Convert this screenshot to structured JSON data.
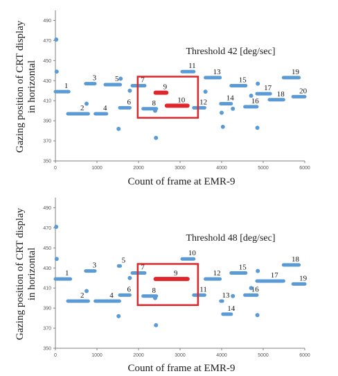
{
  "colors": {
    "series_blue": "#5b9bd5",
    "highlight_red": "#e0262a",
    "box_red": "#e0262a",
    "axis": "#7f7f7f"
  },
  "chart_data": [
    {
      "type": "scatter",
      "annotation": "Threshold 42 [deg/sec]",
      "xlabel": "Count of frame at EMR-9",
      "ylabel_line1": "Gazing position of CRT display",
      "ylabel_line2": "in horizontal",
      "xlim": [
        0,
        6000
      ],
      "ylim": [
        350,
        500
      ],
      "xticks": [
        0,
        1000,
        2000,
        3000,
        4000,
        5000,
        6000
      ],
      "yticks": [
        350,
        370,
        390,
        410,
        430,
        450,
        470,
        490
      ],
      "highlight_box": {
        "x": [
          1980,
          3430
        ],
        "y": [
          393,
          434
        ]
      },
      "fixations": [
        {
          "label": "1",
          "x": [
            0,
            320
          ],
          "y": 419,
          "highlight": false
        },
        {
          "label": "2",
          "x": [
            300,
            790
          ],
          "y": 397,
          "highlight": false
        },
        {
          "label": "3",
          "x": [
            730,
            950
          ],
          "y": 427,
          "highlight": false
        },
        {
          "label": "4",
          "x": [
            960,
            1230
          ],
          "y": 397,
          "highlight": false
        },
        {
          "label": "5",
          "x": [
            1200,
            1560
          ],
          "y": 426,
          "highlight": false
        },
        {
          "label": "6",
          "x": [
            1550,
            1790
          ],
          "y": 403,
          "highlight": false
        },
        {
          "label": "7",
          "x": [
            1850,
            2150
          ],
          "y": 425,
          "highlight": false
        },
        {
          "label": "8",
          "x": [
            2110,
            2430
          ],
          "y": 402,
          "highlight": false
        },
        {
          "label": "9",
          "x": [
            2410,
            2670
          ],
          "y": 418,
          "highlight": true
        },
        {
          "label": "10",
          "x": [
            2680,
            3180
          ],
          "y": 405,
          "highlight": true
        },
        {
          "label": "11",
          "x": [
            3050,
            3330
          ],
          "y": 439,
          "highlight": false
        },
        {
          "label": "12",
          "x": [
            3330,
            3590
          ],
          "y": 403,
          "highlight": false
        },
        {
          "label": "13",
          "x": [
            3610,
            3960
          ],
          "y": 433,
          "highlight": false
        },
        {
          "label": "14",
          "x": [
            3980,
            4230
          ],
          "y": 407,
          "highlight": false
        },
        {
          "label": "15",
          "x": [
            4230,
            4580
          ],
          "y": 425,
          "highlight": false
        },
        {
          "label": "16",
          "x": [
            4560,
            4850
          ],
          "y": 404,
          "highlight": false
        },
        {
          "label": "17",
          "x": [
            4850,
            5170
          ],
          "y": 417,
          "highlight": false
        },
        {
          "label": "18",
          "x": [
            5150,
            5490
          ],
          "y": 411,
          "highlight": false
        },
        {
          "label": "19",
          "x": [
            5490,
            5860
          ],
          "y": 433,
          "highlight": false
        },
        {
          "label": "20",
          "x": [
            5720,
            6000
          ],
          "y": 414,
          "highlight": false
        }
      ],
      "outliers": [
        {
          "x": 20,
          "y": 471
        },
        {
          "x": 30,
          "y": 439
        },
        {
          "x": 750,
          "y": 407
        },
        {
          "x": 1520,
          "y": 382
        },
        {
          "x": 1570,
          "y": 432
        },
        {
          "x": 1790,
          "y": 420
        },
        {
          "x": 2420,
          "y": 373
        },
        {
          "x": 2400,
          "y": 400
        },
        {
          "x": 3610,
          "y": 419
        },
        {
          "x": 4000,
          "y": 398
        },
        {
          "x": 4030,
          "y": 384
        },
        {
          "x": 4270,
          "y": 402
        },
        {
          "x": 4710,
          "y": 415
        },
        {
          "x": 4860,
          "y": 383
        },
        {
          "x": 4870,
          "y": 427
        }
      ]
    },
    {
      "type": "scatter",
      "annotation": "Threshold 48 [deg/sec]",
      "xlabel": "Count of frame at EMR-9",
      "ylabel_line1": "Gazing position of CRT display",
      "ylabel_line2": "in horizontal",
      "xlim": [
        0,
        6000
      ],
      "ylim": [
        350,
        500
      ],
      "xticks": [
        0,
        1000,
        2000,
        3000,
        4000,
        5000,
        6000
      ],
      "yticks": [
        350,
        370,
        390,
        410,
        430,
        450,
        470,
        490
      ],
      "highlight_box": {
        "x": [
          1980,
          3430
        ],
        "y": [
          393,
          434
        ]
      },
      "fixations": [
        {
          "label": "1",
          "x": [
            0,
            360
          ],
          "y": 419,
          "highlight": false
        },
        {
          "label": "2",
          "x": [
            300,
            790
          ],
          "y": 397,
          "highlight": false
        },
        {
          "label": "3",
          "x": [
            730,
            950
          ],
          "y": 427,
          "highlight": false
        },
        {
          "label": "4",
          "x": [
            960,
            1540
          ],
          "y": 397,
          "highlight": false
        },
        {
          "label": "5",
          "x": [
            1520,
            1560
          ],
          "y": 432,
          "highlight": false
        },
        {
          "label": "6",
          "x": [
            1550,
            1790
          ],
          "y": 403,
          "highlight": false
        },
        {
          "label": "7",
          "x": [
            1850,
            2150
          ],
          "y": 425,
          "highlight": false
        },
        {
          "label": "8",
          "x": [
            2110,
            2430
          ],
          "y": 402,
          "highlight": false
        },
        {
          "label": "9",
          "x": [
            2410,
            3180
          ],
          "y": 419,
          "highlight": true
        },
        {
          "label": "10",
          "x": [
            3050,
            3330
          ],
          "y": 439,
          "highlight": false
        },
        {
          "label": "11",
          "x": [
            3330,
            3590
          ],
          "y": 403,
          "highlight": false
        },
        {
          "label": "12",
          "x": [
            3610,
            3960
          ],
          "y": 419,
          "highlight": false
        },
        {
          "label": "13",
          "x": [
            3980,
            4020
          ],
          "y": 397,
          "highlight": false
        },
        {
          "label": "14",
          "x": [
            4030,
            4230
          ],
          "y": 384,
          "highlight": false
        },
        {
          "label": "15",
          "x": [
            4230,
            4580
          ],
          "y": 425,
          "highlight": false
        },
        {
          "label": "16",
          "x": [
            4560,
            4850
          ],
          "y": 403,
          "highlight": false
        },
        {
          "label": "17",
          "x": [
            4850,
            5490
          ],
          "y": 417,
          "highlight": false
        },
        {
          "label": "18",
          "x": [
            5490,
            5860
          ],
          "y": 433,
          "highlight": false
        },
        {
          "label": "19",
          "x": [
            5720,
            6000
          ],
          "y": 414,
          "highlight": false
        }
      ],
      "outliers": [
        {
          "x": 20,
          "y": 471
        },
        {
          "x": 30,
          "y": 439
        },
        {
          "x": 750,
          "y": 407
        },
        {
          "x": 1520,
          "y": 382
        },
        {
          "x": 1790,
          "y": 420
        },
        {
          "x": 2420,
          "y": 373
        },
        {
          "x": 2400,
          "y": 400
        },
        {
          "x": 4270,
          "y": 402
        },
        {
          "x": 4710,
          "y": 410
        },
        {
          "x": 4860,
          "y": 383
        },
        {
          "x": 4870,
          "y": 427
        }
      ]
    }
  ]
}
